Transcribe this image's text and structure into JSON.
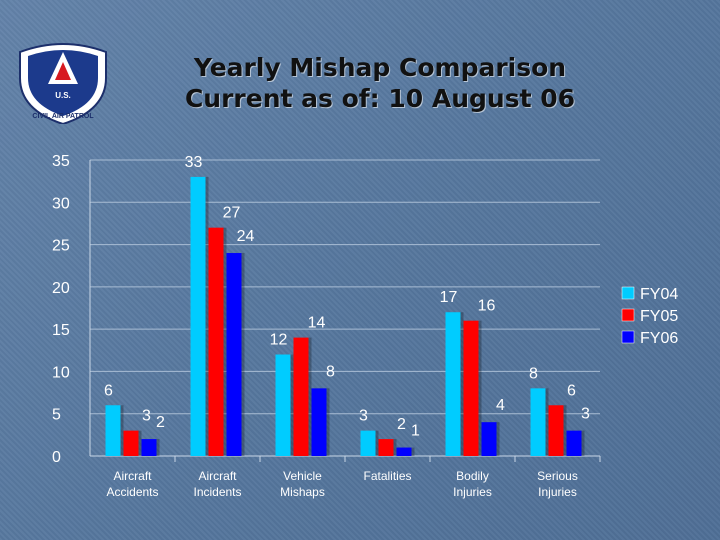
{
  "logo": {
    "text_top": "U.S.",
    "text_ring": "CIVIL AIR PATROL"
  },
  "title": {
    "line1": "Yearly Mishap Comparison",
    "line2": "Current as of: 10 August 06"
  },
  "colors": {
    "FY04": "#00ccff",
    "FY05": "#ff0000",
    "FY06": "#0000ff"
  },
  "chart_data": {
    "type": "bar",
    "categories": [
      "Aircraft Accidents",
      "Aircraft Incidents",
      "Vehicle Mishaps",
      "Fatalities",
      "Bodily Injuries",
      "Serious Injuries"
    ],
    "category_labels": [
      [
        "Aircraft",
        "Accidents"
      ],
      [
        "Aircraft",
        "Incidents"
      ],
      [
        "Vehicle",
        "Mishaps"
      ],
      [
        "Fatalities"
      ],
      [
        "Bodily",
        "Injuries"
      ],
      [
        "Serious",
        "Injuries"
      ]
    ],
    "series": [
      {
        "name": "FY04",
        "values": [
          6,
          33,
          12,
          3,
          17,
          8
        ]
      },
      {
        "name": "FY05",
        "values": [
          3,
          27,
          14,
          2,
          16,
          6
        ]
      },
      {
        "name": "FY06",
        "values": [
          2,
          24,
          8,
          1,
          4,
          3
        ]
      }
    ],
    "ylim": [
      0,
      35
    ],
    "yticks": [
      0,
      5,
      10,
      15,
      20,
      25,
      30,
      35
    ],
    "grid": true,
    "legend": "right"
  }
}
